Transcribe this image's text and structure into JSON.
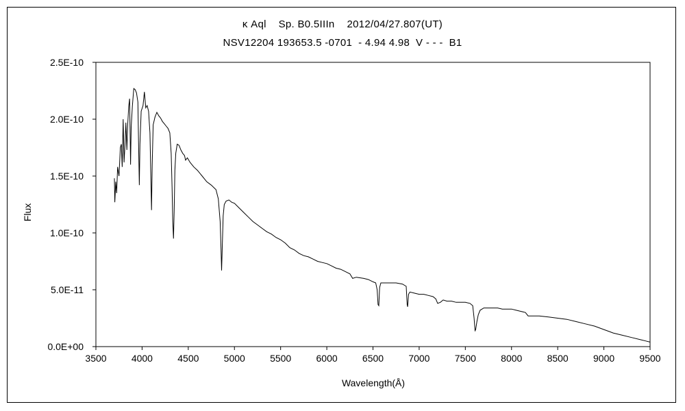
{
  "chart_data": {
    "type": "line",
    "title_line1": "κ Aql    Sp. B0.5IIIn    2012/04/27.807(UT)",
    "title_line2": "NSV12204 193653.5 -0701  - 4.94 4.98  V - - -  B1",
    "xlabel": "Wavelength(Å)",
    "ylabel": "Flux",
    "xlim": [
      3500,
      9500
    ],
    "ylim": [
      0,
      2.5e-10
    ],
    "x_ticks": [
      "3500",
      "4000",
      "4500",
      "5000",
      "5500",
      "6000",
      "6500",
      "7000",
      "7500",
      "8000",
      "8500",
      "9000",
      "9500"
    ],
    "y_ticks": [
      "0.0E+00",
      "5.0E-11",
      "1.0E-10",
      "1.5E-10",
      "2.0E-10",
      "2.5E-10"
    ],
    "grid": false,
    "series": [
      {
        "line_color": "#000000",
        "points": [
          [
            3700,
            1.48e-10
          ],
          [
            3705,
            1.27e-10
          ],
          [
            3715,
            1.45e-10
          ],
          [
            3725,
            1.35e-10
          ],
          [
            3735,
            1.58e-10
          ],
          [
            3750,
            1.5e-10
          ],
          [
            3765,
            1.75e-10
          ],
          [
            3775,
            1.78e-10
          ],
          [
            3785,
            1.58e-10
          ],
          [
            3795,
            2e-10
          ],
          [
            3805,
            1.62e-10
          ],
          [
            3815,
            1.78e-10
          ],
          [
            3825,
            1.97e-10
          ],
          [
            3835,
            1.73e-10
          ],
          [
            3845,
            1.96e-10
          ],
          [
            3855,
            2.11e-10
          ],
          [
            3865,
            2.18e-10
          ],
          [
            3875,
            1.6e-10
          ],
          [
            3882,
            1.93e-10
          ],
          [
            3895,
            2.12e-10
          ],
          [
            3910,
            2.27e-10
          ],
          [
            3925,
            2.26e-10
          ],
          [
            3940,
            2.23e-10
          ],
          [
            3955,
            2.15e-10
          ],
          [
            3963,
            1.75e-10
          ],
          [
            3970,
            1.42e-10
          ],
          [
            3977,
            1.78e-10
          ],
          [
            3990,
            2.07e-10
          ],
          [
            4010,
            2.12e-10
          ],
          [
            4025,
            2.24e-10
          ],
          [
            4040,
            2.1e-10
          ],
          [
            4055,
            2.12e-10
          ],
          [
            4070,
            2.07e-10
          ],
          [
            4085,
            1.88e-10
          ],
          [
            4095,
            1.5e-10
          ],
          [
            4102,
            1.2e-10
          ],
          [
            4110,
            1.6e-10
          ],
          [
            4120,
            1.95e-10
          ],
          [
            4140,
            2.02e-10
          ],
          [
            4160,
            2.06e-10
          ],
          [
            4180,
            2.03e-10
          ],
          [
            4200,
            2.01e-10
          ],
          [
            4220,
            1.98e-10
          ],
          [
            4240,
            1.96e-10
          ],
          [
            4260,
            1.94e-10
          ],
          [
            4280,
            1.92e-10
          ],
          [
            4300,
            1.88e-10
          ],
          [
            4315,
            1.7e-10
          ],
          [
            4325,
            1.4e-10
          ],
          [
            4332,
            1.1e-10
          ],
          [
            4340,
            9.5e-11
          ],
          [
            4348,
            1.2e-10
          ],
          [
            4355,
            1.55e-10
          ],
          [
            4365,
            1.7e-10
          ],
          [
            4380,
            1.78e-10
          ],
          [
            4400,
            1.77e-10
          ],
          [
            4420,
            1.73e-10
          ],
          [
            4440,
            1.7e-10
          ],
          [
            4460,
            1.68e-10
          ],
          [
            4471,
            1.64e-10
          ],
          [
            4490,
            1.66e-10
          ],
          [
            4520,
            1.62e-10
          ],
          [
            4560,
            1.58e-10
          ],
          [
            4600,
            1.55e-10
          ],
          [
            4650,
            1.5e-10
          ],
          [
            4700,
            1.45e-10
          ],
          [
            4750,
            1.42e-10
          ],
          [
            4800,
            1.38e-10
          ],
          [
            4825,
            1.3e-10
          ],
          [
            4845,
            1.1e-10
          ],
          [
            4855,
            8.5e-11
          ],
          [
            4861,
            6.7e-11
          ],
          [
            4868,
            8.8e-11
          ],
          [
            4878,
            1.15e-10
          ],
          [
            4890,
            1.25e-10
          ],
          [
            4910,
            1.28e-10
          ],
          [
            4940,
            1.29e-10
          ],
          [
            4970,
            1.27e-10
          ],
          [
            5000,
            1.26e-10
          ],
          [
            5050,
            1.22e-10
          ],
          [
            5100,
            1.18e-10
          ],
          [
            5150,
            1.14e-10
          ],
          [
            5200,
            1.1e-10
          ],
          [
            5250,
            1.07e-10
          ],
          [
            5300,
            1.04e-10
          ],
          [
            5350,
            1.01e-10
          ],
          [
            5400,
            9.9e-11
          ],
          [
            5450,
            9.6e-11
          ],
          [
            5500,
            9.4e-11
          ],
          [
            5550,
            9.1e-11
          ],
          [
            5600,
            8.7e-11
          ],
          [
            5650,
            8.5e-11
          ],
          [
            5700,
            8.2e-11
          ],
          [
            5750,
            8e-11
          ],
          [
            5800,
            7.9e-11
          ],
          [
            5850,
            7.7e-11
          ],
          [
            5900,
            7.5e-11
          ],
          [
            5950,
            7.4e-11
          ],
          [
            6000,
            7.3e-11
          ],
          [
            6050,
            7.1e-11
          ],
          [
            6100,
            6.9e-11
          ],
          [
            6150,
            6.8e-11
          ],
          [
            6200,
            6.6e-11
          ],
          [
            6250,
            6.4e-11
          ],
          [
            6280,
            6e-11
          ],
          [
            6320,
            6.1e-11
          ],
          [
            6400,
            6e-11
          ],
          [
            6450,
            5.9e-11
          ],
          [
            6500,
            5.7e-11
          ],
          [
            6530,
            5.6e-11
          ],
          [
            6545,
            5e-11
          ],
          [
            6555,
            3.7e-11
          ],
          [
            6563,
            3.6e-11
          ],
          [
            6572,
            5.2e-11
          ],
          [
            6585,
            5.6e-11
          ],
          [
            6650,
            5.6e-11
          ],
          [
            6750,
            5.6e-11
          ],
          [
            6820,
            5.5e-11
          ],
          [
            6860,
            5.3e-11
          ],
          [
            6870,
            3.7e-11
          ],
          [
            6875,
            3.5e-11
          ],
          [
            6885,
            4.6e-11
          ],
          [
            6900,
            4.8e-11
          ],
          [
            6950,
            4.7e-11
          ],
          [
            7000,
            4.6e-11
          ],
          [
            7050,
            4.6e-11
          ],
          [
            7100,
            4.5e-11
          ],
          [
            7150,
            4.4e-11
          ],
          [
            7180,
            4.2e-11
          ],
          [
            7200,
            3.8e-11
          ],
          [
            7230,
            3.9e-11
          ],
          [
            7260,
            4.1e-11
          ],
          [
            7300,
            4e-11
          ],
          [
            7350,
            4e-11
          ],
          [
            7400,
            3.9e-11
          ],
          [
            7450,
            3.9e-11
          ],
          [
            7500,
            3.9e-11
          ],
          [
            7550,
            3.8e-11
          ],
          [
            7580,
            3.6e-11
          ],
          [
            7595,
            2.5e-11
          ],
          [
            7605,
            1.4e-11
          ],
          [
            7612,
            1.5e-11
          ],
          [
            7625,
            2.2e-11
          ],
          [
            7640,
            2.8e-11
          ],
          [
            7660,
            3.2e-11
          ],
          [
            7700,
            3.4e-11
          ],
          [
            7750,
            3.4e-11
          ],
          [
            7800,
            3.4e-11
          ],
          [
            7850,
            3.4e-11
          ],
          [
            7900,
            3.3e-11
          ],
          [
            7950,
            3.3e-11
          ],
          [
            8000,
            3.3e-11
          ],
          [
            8050,
            3.2e-11
          ],
          [
            8100,
            3.1e-11
          ],
          [
            8150,
            3e-11
          ],
          [
            8180,
            2.7e-11
          ],
          [
            8220,
            2.7e-11
          ],
          [
            8300,
            2.7e-11
          ],
          [
            8400,
            2.6e-11
          ],
          [
            8500,
            2.5e-11
          ],
          [
            8600,
            2.4e-11
          ],
          [
            8700,
            2.2e-11
          ],
          [
            8800,
            2e-11
          ],
          [
            8900,
            1.8e-11
          ],
          [
            9000,
            1.5e-11
          ],
          [
            9100,
            1.2e-11
          ],
          [
            9200,
            1e-11
          ],
          [
            9300,
            8e-12
          ],
          [
            9400,
            6e-12
          ],
          [
            9450,
            5e-12
          ],
          [
            9500,
            4e-12
          ]
        ]
      }
    ]
  }
}
